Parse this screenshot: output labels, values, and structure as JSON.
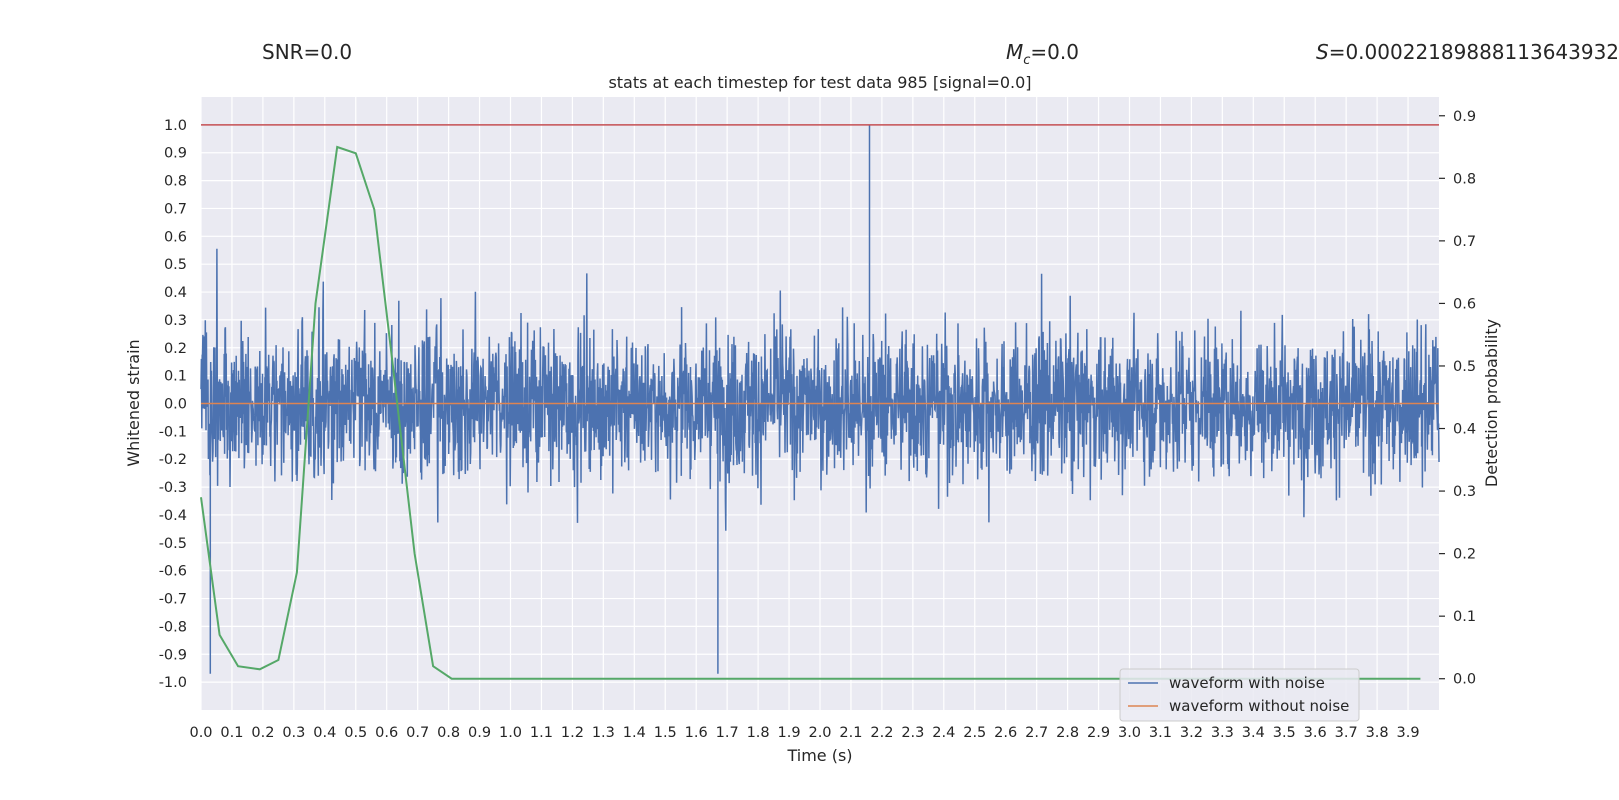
{
  "header": {
    "snr_text": "SNR=0.0",
    "mc_symbol": "M",
    "mc_sub": "c",
    "mc_value": "=0.0",
    "s_symbol": "S",
    "s_value": "=0.00022189888113643932"
  },
  "chart_data": {
    "type": "line",
    "title": "stats at each timestep for test data 985 [signal=0.0]",
    "xlabel": "Time (s)",
    "ylabel": "Whitened strain",
    "y2label": "Detection probability",
    "xlim": [
      0.0,
      4.0
    ],
    "ylim": [
      -1.1,
      1.1
    ],
    "y2lim": [
      -0.05,
      0.93
    ],
    "x_ticks": [
      "0.0",
      "0.1",
      "0.2",
      "0.3",
      "0.4",
      "0.5",
      "0.6",
      "0.7",
      "0.8",
      "0.9",
      "1.0",
      "1.1",
      "1.2",
      "1.3",
      "1.4",
      "1.5",
      "1.6",
      "1.7",
      "1.8",
      "1.9",
      "2.0",
      "2.1",
      "2.2",
      "2.3",
      "2.4",
      "2.5",
      "2.6",
      "2.7",
      "2.8",
      "2.9",
      "3.0",
      "3.1",
      "3.2",
      "3.3",
      "3.4",
      "3.5",
      "3.6",
      "3.7",
      "3.8",
      "3.9"
    ],
    "y_ticks": [
      "1.0",
      "0.9",
      "0.8",
      "0.7",
      "0.6",
      "0.5",
      "0.4",
      "0.3",
      "0.2",
      "0.1",
      "0.0",
      "-0.1",
      "-0.2",
      "-0.3",
      "-0.4",
      "-0.5",
      "-0.6",
      "-0.7",
      "-0.8",
      "-0.9",
      "-1.0"
    ],
    "y2_ticks": [
      "0.9",
      "0.8",
      "0.7",
      "0.6",
      "0.5",
      "0.4",
      "0.3",
      "0.2",
      "0.1",
      "0.0"
    ],
    "threshold": 1.0,
    "noise_waveform": {
      "name": "waveform with noise",
      "color": "#4c72b0",
      "typical_amplitude": 0.35,
      "peak_max": 1.0,
      "peak_min": -0.97
    },
    "clean_waveform": {
      "name": "waveform without noise",
      "color": "#dd8452",
      "value": 0.0
    },
    "detection_probability": {
      "color": "#55a868",
      "threshold_color": "#c44e52",
      "x": [
        0.0,
        0.06,
        0.12,
        0.19,
        0.25,
        0.31,
        0.37,
        0.44,
        0.5,
        0.56,
        0.62,
        0.69,
        0.75,
        0.81,
        0.87,
        0.94,
        1.0,
        1.5,
        2.0,
        2.5,
        3.0,
        3.5,
        3.94
      ],
      "y": [
        0.29,
        0.07,
        0.02,
        0.015,
        0.03,
        0.17,
        0.6,
        0.85,
        0.84,
        0.75,
        0.5,
        0.2,
        0.02,
        0.0,
        0.0,
        0.0,
        0.0,
        0.0,
        0.0,
        0.0,
        0.0,
        0.0,
        0.0
      ]
    }
  }
}
